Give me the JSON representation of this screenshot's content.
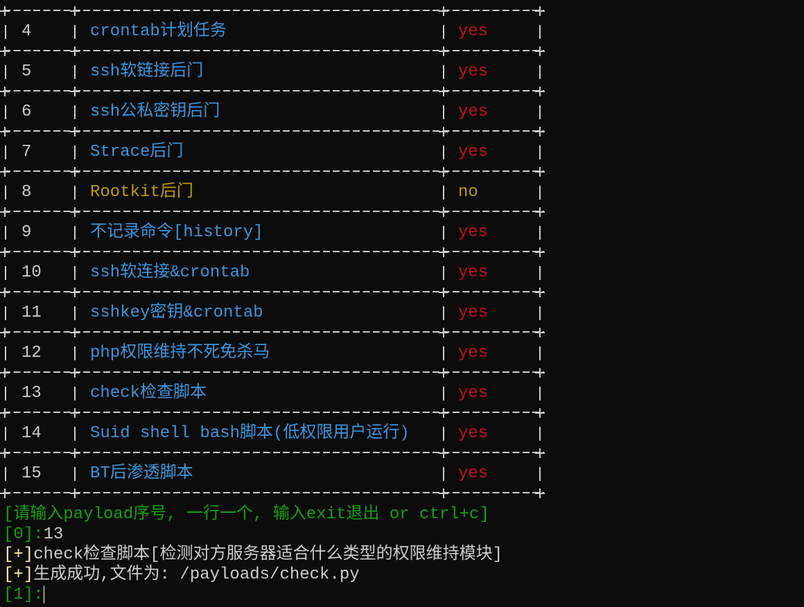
{
  "colors": {
    "background": "#0c0c0c",
    "name": "#3a96dd",
    "name_disabled": "#c19c00",
    "yes": "#c50f1f",
    "no": "#c19c00",
    "prompt": "#13a10e",
    "info": "#f9f1a5",
    "text": "#cccccc"
  },
  "table": {
    "rows": [
      {
        "id": "4",
        "name": "crontab计划任务",
        "status": "yes"
      },
      {
        "id": "5",
        "name": "ssh软链接后门",
        "status": "yes"
      },
      {
        "id": "6",
        "name": "ssh公私密钥后门",
        "status": "yes"
      },
      {
        "id": "7",
        "name": "Strace后门",
        "status": "yes"
      },
      {
        "id": "8",
        "name": "Rootkit后门",
        "status": "no"
      },
      {
        "id": "9",
        "name": "不记录命令[history]",
        "status": "yes"
      },
      {
        "id": "10",
        "name": "ssh软连接&crontab",
        "status": "yes"
      },
      {
        "id": "11",
        "name": "sshkey密钥&crontab",
        "status": "yes"
      },
      {
        "id": "12",
        "name": "php权限维持不死免杀马",
        "status": "yes"
      },
      {
        "id": "13",
        "name": "check检查脚本",
        "status": "yes"
      },
      {
        "id": "14",
        "name": "Suid shell bash脚本(低权限用户运行)",
        "status": "yes"
      },
      {
        "id": "15",
        "name": "BT后渗透脚本",
        "status": "yes"
      }
    ]
  },
  "console": {
    "instruction": "[请输入payload序号, 一行一个, 输入exit退出 or ctrl+c]",
    "prompt0": "[0]:",
    "input0": "13",
    "info_tag": "[+]",
    "info1": "check检查脚本[检测对方服务器适合什么类型的权限维持模块]",
    "info2": "生成成功,文件为: /payloads/check.py",
    "prompt1": "[1]:"
  }
}
